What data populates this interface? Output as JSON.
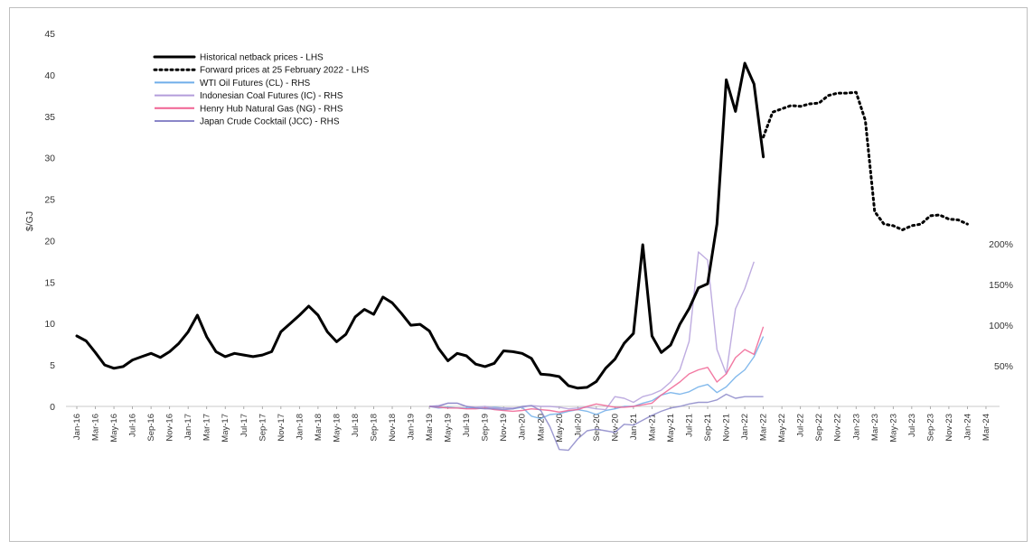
{
  "chart_data": {
    "type": "line",
    "title": "",
    "ylabel": "$/GJ",
    "xlabel": "",
    "ylim": [
      0,
      45
    ],
    "y_ticks": [
      0,
      5,
      10,
      15,
      20,
      25,
      30,
      35,
      40,
      45
    ],
    "rhs_ticks": [
      "50%",
      "100%",
      "150%",
      "200%"
    ],
    "x_tick_labels": [
      "Jan-16",
      "Mar-16",
      "May-16",
      "Jul-16",
      "Sep-16",
      "Nov-16",
      "Jan-17",
      "Mar-17",
      "May-17",
      "Jul-17",
      "Sep-17",
      "Nov-17",
      "Jan-18",
      "Mar-18",
      "May-18",
      "Jul-18",
      "Sep-18",
      "Nov-18",
      "Jan-19",
      "Mar-19",
      "May-19",
      "Jul-19",
      "Sep-19",
      "Nov-19",
      "Jan-20",
      "Mar-20",
      "May-20",
      "Jul-20",
      "Sep-20",
      "Nov-20",
      "Jan-21",
      "Mar-21",
      "May-21",
      "Jul-21",
      "Sep-21",
      "Nov-21",
      "Jan-22",
      "Mar-22",
      "May-22",
      "Jul-22",
      "Sep-22",
      "Nov-22",
      "Jan-23",
      "Mar-23",
      "May-23",
      "Jul-23",
      "Sep-23",
      "Nov-23",
      "Jan-24",
      "Mar-24"
    ],
    "legend_position": "top-left",
    "series": [
      {
        "name": "Historical netback prices - LHS",
        "axis": "left",
        "color": "#000000",
        "style": "solid-thick",
        "start_month_index": 0,
        "values": [
          8.5,
          7.9,
          6.5,
          5.0,
          4.6,
          4.8,
          5.6,
          6.0,
          6.4,
          5.9,
          6.6,
          7.6,
          9.0,
          11.0,
          8.4,
          6.6,
          6.0,
          6.4,
          6.2,
          6.0,
          6.2,
          6.6,
          9.0,
          10.0,
          11.0,
          12.1,
          11.0,
          9.0,
          7.8,
          8.7,
          10.8,
          11.7,
          11.1,
          13.2,
          12.5,
          11.2,
          9.8,
          9.9,
          9.1,
          7.0,
          5.5,
          6.4,
          6.1,
          5.1,
          4.8,
          5.2,
          6.7,
          6.6,
          6.4,
          5.8,
          3.9,
          3.8,
          3.6,
          2.5,
          2.2,
          2.3,
          3.0,
          4.6,
          5.7,
          7.6,
          8.8,
          19.5,
          8.5,
          6.5,
          7.4,
          9.9,
          11.8,
          14.3,
          14.8,
          22.0,
          39.4,
          35.6,
          41.4,
          38.9,
          30.1
        ]
      },
      {
        "name": "Forward prices at 25 February 2022 - LHS",
        "axis": "left",
        "color": "#000000",
        "style": "dotted",
        "start_month_index": 74,
        "values": [
          32.5,
          35.5,
          35.9,
          36.3,
          36.2,
          36.5,
          36.6,
          37.5,
          37.8,
          37.8,
          37.9,
          34.5,
          23.5,
          22.0,
          21.8,
          21.3,
          21.8,
          22.0,
          23.0,
          23.1,
          22.6,
          22.5,
          22.0
        ]
      },
      {
        "name": "WTI Oil Futures (CL) - RHS",
        "axis": "right",
        "color": "#6faee9",
        "style": "solid-thin",
        "start_month_index": 38,
        "values": [
          0,
          -2,
          -1,
          -2,
          -2,
          -2,
          -2,
          -1,
          -2,
          -3,
          -1,
          -12,
          -15,
          -10,
          -9,
          -6,
          -4,
          -6,
          -10,
          -5,
          -3,
          0,
          0,
          4,
          7,
          14,
          17,
          15,
          18,
          24,
          27,
          17,
          24,
          36,
          45,
          61,
          86
        ]
      },
      {
        "name": "Indonesian Coal Futures (IC) - RHS",
        "axis": "right",
        "color": "#b39ddb",
        "style": "solid-thin",
        "start_month_index": 38,
        "values": [
          0,
          1,
          4,
          4,
          0,
          -1,
          0,
          -2,
          -2,
          -2,
          -1,
          1,
          0,
          0,
          -1,
          -3,
          -2,
          -1,
          -3,
          -4,
          12,
          10,
          5,
          12,
          15,
          20,
          30,
          45,
          80,
          190,
          180,
          70,
          40,
          120,
          145,
          178
        ]
      },
      {
        "name": "Henry Hub Natural Gas (NG) - RHS",
        "axis": "right",
        "color": "#f06292",
        "style": "solid-thin",
        "start_month_index": 38,
        "values": [
          0,
          -1,
          -2,
          -2,
          -3,
          -3,
          -2,
          -4,
          -5,
          -6,
          -5,
          -3,
          -4,
          -5,
          -7,
          -5,
          -4,
          0,
          3,
          1,
          -1,
          -1,
          0,
          2,
          4,
          14,
          22,
          30,
          40,
          45,
          48,
          30,
          40,
          60,
          70,
          64,
          98
        ]
      },
      {
        "name": "Japan Crude Cocktail (JCC) - RHS",
        "axis": "right",
        "color": "#8a86c8",
        "style": "solid-thin",
        "start_month_index": 38,
        "values": [
          0,
          0,
          4,
          4,
          0,
          -2,
          -3,
          -3,
          -4,
          -3,
          0,
          1,
          -5,
          -25,
          -53,
          -54,
          -40,
          -30,
          -28,
          -30,
          -32,
          -22,
          -23,
          -17,
          -11,
          -6,
          -2,
          0,
          3,
          5,
          5,
          8,
          15,
          10,
          12,
          12,
          12
        ]
      }
    ]
  }
}
